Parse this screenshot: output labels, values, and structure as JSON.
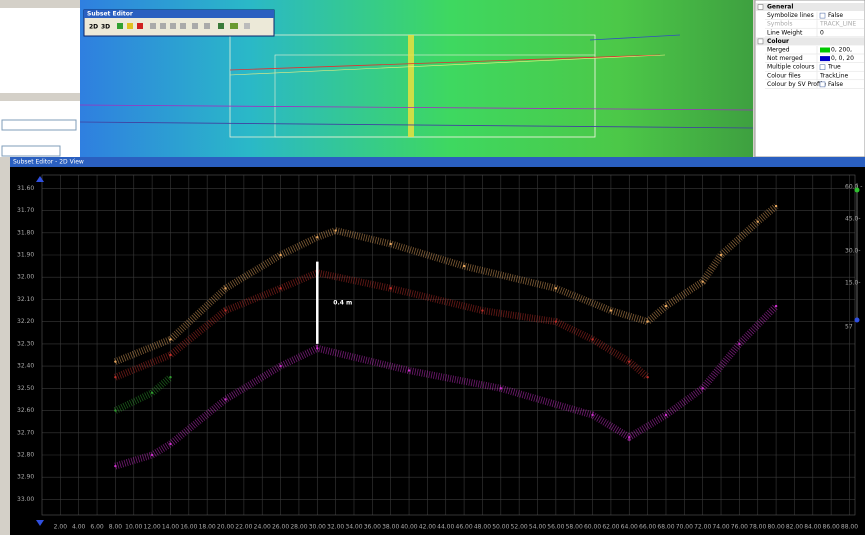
{
  "window": {
    "title": "Subset Editor - 2D View"
  },
  "toolbar": {
    "title": "Subset Editor",
    "buttons": [
      "2D",
      "3D"
    ]
  },
  "properties": {
    "sections": [
      {
        "name": "General",
        "rows": [
          [
            "Symbolize lines",
            "False"
          ],
          [
            "Symbols",
            "TRACK_LINE"
          ],
          [
            "Line Weight",
            "0"
          ]
        ]
      },
      {
        "name": "Colour",
        "rows": [
          [
            "Merged",
            "0, 200,"
          ],
          [
            "Not merged",
            "0, 0, 20"
          ],
          [
            "Multiple colours",
            "True"
          ],
          [
            "Colour files",
            "TrackLine"
          ],
          [
            "Colour by SV Profile",
            "False"
          ]
        ]
      }
    ]
  },
  "chart_data": {
    "type": "scatter",
    "xlim": [
      0,
      88.6
    ],
    "ylim": [
      33.07,
      31.54
    ],
    "grid": true,
    "xticks": [
      {
        "value": 2,
        "label": "2.00"
      },
      {
        "value": 4,
        "label": "4.00"
      },
      {
        "value": 6,
        "label": "6.00"
      },
      {
        "value": 8,
        "label": "8.00"
      },
      {
        "value": 10,
        "label": "10.00"
      },
      {
        "value": 12,
        "label": "12.00"
      },
      {
        "value": 14,
        "label": "14.00"
      },
      {
        "value": 16,
        "label": "16.00"
      },
      {
        "value": 18,
        "label": "18.00"
      },
      {
        "value": 20,
        "label": "20.00"
      },
      {
        "value": 22,
        "label": "22.00"
      },
      {
        "value": 24,
        "label": "24.00"
      },
      {
        "value": 26,
        "label": "26.00"
      },
      {
        "value": 28,
        "label": "28.00"
      },
      {
        "value": 30,
        "label": "30.00"
      },
      {
        "value": 32,
        "label": "32.00"
      },
      {
        "value": 34,
        "label": "34.00"
      },
      {
        "value": 36,
        "label": "36.00"
      },
      {
        "value": 38,
        "label": "38.00"
      },
      {
        "value": 40,
        "label": "40.00"
      },
      {
        "value": 42,
        "label": "42.00"
      },
      {
        "value": 44,
        "label": "44.00"
      },
      {
        "value": 46,
        "label": "46.00"
      },
      {
        "value": 48,
        "label": "48.00"
      },
      {
        "value": 50,
        "label": "50.00"
      },
      {
        "value": 52,
        "label": "52.00"
      },
      {
        "value": 54,
        "label": "54.00"
      },
      {
        "value": 56,
        "label": "56.00"
      },
      {
        "value": 58,
        "label": "58.00"
      },
      {
        "value": 60,
        "label": "60.00"
      },
      {
        "value": 62,
        "label": "62.00"
      },
      {
        "value": 64,
        "label": "64.00"
      },
      {
        "value": 66,
        "label": "66.00"
      },
      {
        "value": 68,
        "label": "68.00"
      },
      {
        "value": 70,
        "label": "70.00"
      },
      {
        "value": 72,
        "label": "72.00"
      },
      {
        "value": 74,
        "label": "74.00"
      },
      {
        "value": 76,
        "label": "76.00"
      },
      {
        "value": 78,
        "label": "78.00"
      },
      {
        "value": 80,
        "label": "80.00"
      },
      {
        "value": 82,
        "label": "82.00"
      },
      {
        "value": 84,
        "label": "84.00"
      },
      {
        "value": 86,
        "label": "86.00"
      },
      {
        "value": 88,
        "label": "88.00"
      }
    ],
    "yticks": [
      {
        "value": 31.6,
        "label": "31.60"
      },
      {
        "value": 31.7,
        "label": "31.70"
      },
      {
        "value": 31.8,
        "label": "31.80"
      },
      {
        "value": 31.9,
        "label": "31.90"
      },
      {
        "value": 32,
        "label": "32.00"
      },
      {
        "value": 32.1,
        "label": "32.10"
      },
      {
        "value": 32.2,
        "label": "32.20"
      },
      {
        "value": 32.3,
        "label": "32.30"
      },
      {
        "value": 32.4,
        "label": "32.40"
      },
      {
        "value": 32.5,
        "label": "32.50"
      },
      {
        "value": 32.6,
        "label": "32.60"
      },
      {
        "value": 32.7,
        "label": "32.70"
      },
      {
        "value": 32.8,
        "label": "32.80"
      },
      {
        "value": 32.9,
        "label": "32.90"
      },
      {
        "value": 33,
        "label": "33.00"
      }
    ],
    "series": [
      {
        "color": "#e8a860",
        "x": [
          8,
          14,
          20,
          26,
          30,
          32,
          38,
          46,
          56,
          62,
          66,
          68,
          72,
          74,
          78,
          80
        ],
        "values": [
          32.38,
          32.28,
          32.05,
          31.9,
          31.82,
          31.79,
          31.85,
          31.95,
          32.05,
          32.15,
          32.2,
          32.13,
          32.02,
          31.9,
          31.75,
          31.68
        ]
      },
      {
        "color": "#c0302a",
        "x": [
          8,
          14,
          20,
          26,
          30,
          38,
          48,
          56,
          60,
          64,
          66
        ],
        "values": [
          32.45,
          32.35,
          32.15,
          32.05,
          31.98,
          32.05,
          32.15,
          32.2,
          32.28,
          32.38,
          32.45
        ]
      },
      {
        "color": "#d030d0",
        "x": [
          8,
          12,
          14,
          20,
          26,
          30,
          40,
          50,
          60,
          64,
          68,
          72,
          76,
          80
        ],
        "values": [
          32.85,
          32.8,
          32.75,
          32.55,
          32.4,
          32.32,
          32.42,
          32.5,
          32.62,
          32.72,
          32.62,
          32.5,
          32.3,
          32.13
        ]
      },
      {
        "color": "#30a030",
        "x": [
          8,
          12,
          14
        ],
        "values": [
          32.6,
          32.52,
          32.45
        ]
      }
    ],
    "annotation": {
      "text": "0.4 m",
      "x": 30,
      "y_top": 31.93,
      "y_bottom": 32.3
    },
    "right_scale": [
      "60.0 -",
      "45.0-",
      "30.0-",
      "15.0-",
      "57"
    ]
  }
}
